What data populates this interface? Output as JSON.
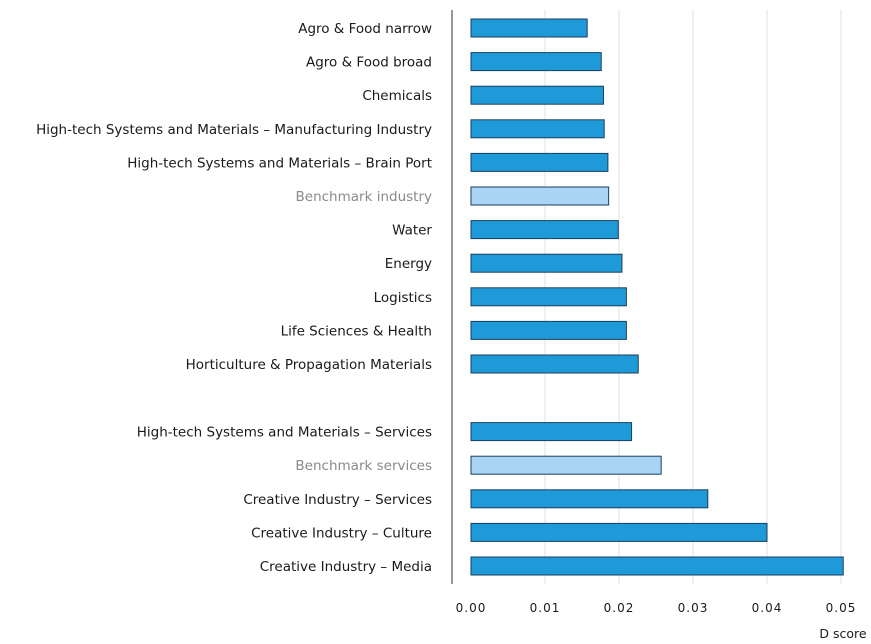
{
  "chart_data": {
    "type": "bar",
    "orientation": "horizontal",
    "xlabel": "D score",
    "xlim": [
      0,
      0.05
    ],
    "xticks": [
      "0.00",
      "0.01",
      "0.02",
      "0.03",
      "0.04",
      "0.05"
    ],
    "grid": true,
    "colors": {
      "sector": "#1e9ad9",
      "benchmark": "#a9d4f3",
      "edge": "#1b3f5c"
    },
    "groups": [
      {
        "bars": [
          {
            "label": "Agro & Food narrow",
            "value": 0.0157,
            "kind": "sector"
          },
          {
            "label": "Agro & Food broad",
            "value": 0.0176,
            "kind": "sector"
          },
          {
            "label": "Chemicals",
            "value": 0.0179,
            "kind": "sector"
          },
          {
            "label": "High-tech Systems and Materials – Manufacturing Industry",
            "value": 0.018,
            "kind": "sector"
          },
          {
            "label": "High-tech Systems and Materials – Brain Port",
            "value": 0.0185,
            "kind": "sector"
          },
          {
            "label": "Benchmark industry",
            "value": 0.0186,
            "kind": "benchmark"
          },
          {
            "label": "Water",
            "value": 0.0199,
            "kind": "sector"
          },
          {
            "label": "Energy",
            "value": 0.0204,
            "kind": "sector"
          },
          {
            "label": "Logistics",
            "value": 0.021,
            "kind": "sector"
          },
          {
            "label": "Life Sciences & Health",
            "value": 0.021,
            "kind": "sector"
          },
          {
            "label": "Horticulture & Propagation Materials",
            "value": 0.0226,
            "kind": "sector"
          }
        ]
      },
      {
        "bars": [
          {
            "label": "High-tech Systems and Materials – Services",
            "value": 0.0217,
            "kind": "sector"
          },
          {
            "label": "Benchmark services",
            "value": 0.0257,
            "kind": "benchmark"
          },
          {
            "label": "Creative Industry – Services",
            "value": 0.032,
            "kind": "sector"
          },
          {
            "label": "Creative Industry – Culture",
            "value": 0.04,
            "kind": "sector"
          },
          {
            "label": "Creative Industry – Media",
            "value": 0.0503,
            "kind": "sector"
          }
        ]
      }
    ]
  }
}
